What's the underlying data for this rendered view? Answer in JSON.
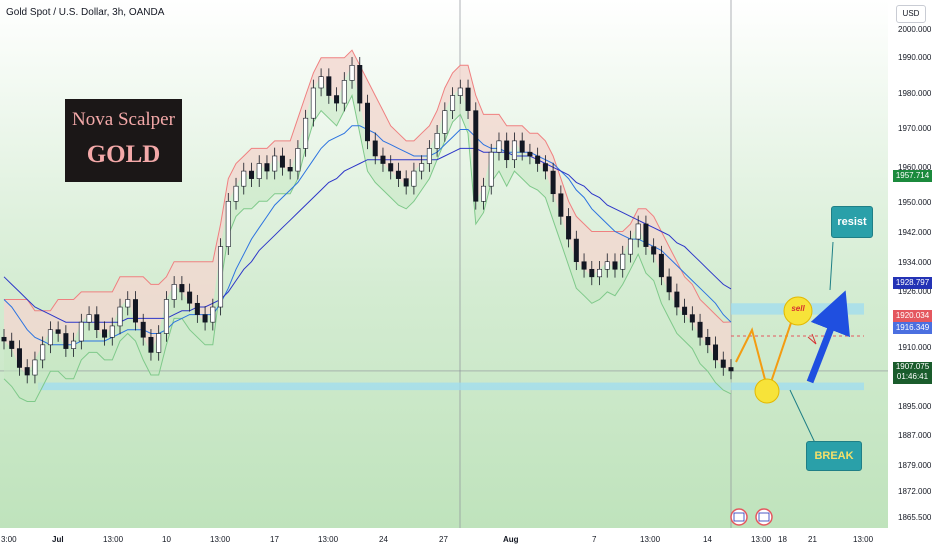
{
  "header": {
    "title": "Gold Spot / U.S. Dollar, 3h, OANDA",
    "currency": "USD"
  },
  "logo": {
    "line1": "Nova Scalper",
    "line2": "GOLD"
  },
  "annotations": {
    "resist": "resist",
    "break": "BREAK",
    "sell": "sell"
  },
  "price_tags": [
    {
      "value": "1957.714",
      "color": "#1b8a3c"
    },
    {
      "value": "1928.797",
      "color": "#2433b5"
    },
    {
      "value": "1920.034",
      "color": "#e4575f"
    },
    {
      "value": "1916.349",
      "color": "#4b6fe0"
    },
    {
      "value": "1907.075",
      "countdown": "01:46:41",
      "color": "#1a5c2c"
    }
  ],
  "colors": {
    "candle": "#131722",
    "cloud_fill": "#f2d7cf",
    "bull_band": "#7fc98a",
    "bear_band": "#ef8080",
    "fast_ma": "#2c73e0",
    "slow_ma": "#2d36c8",
    "zone": "#9fdcf0",
    "projection": "#f39c12",
    "arrow": "#1f4fe0"
  },
  "chart_data": {
    "type": "line",
    "title": "Gold Spot / U.S. Dollar, 3h, OANDA",
    "ylim": [
      1865.5,
      2000
    ],
    "y_ticks": [
      "2000.000",
      "1990.000",
      "1980.000",
      "1970.000",
      "1960.000",
      "1950.000",
      "1942.000",
      "1934.000",
      "1926.000",
      "1910.000",
      "1895.000",
      "1887.000",
      "1879.000",
      "1872.000",
      "1865.500"
    ],
    "x_ticks": [
      "3:00",
      "Jul",
      "13:00",
      "10",
      "13:00",
      "17",
      "13:00",
      "24",
      "27",
      "Aug",
      "7",
      "13:00",
      "14",
      "13:00",
      "18",
      "21",
      "13:00"
    ],
    "grid": false,
    "series": [
      {
        "name": "close",
        "values": [
          1915,
          1913,
          1908,
          1906,
          1910,
          1914,
          1918,
          1917,
          1913,
          1915,
          1920,
          1922,
          1918,
          1916,
          1919,
          1924,
          1926,
          1920,
          1916,
          1912,
          1917,
          1926,
          1930,
          1928,
          1925,
          1922,
          1920,
          1924,
          1940,
          1952,
          1956,
          1960,
          1958,
          1962,
          1960,
          1964,
          1961,
          1960,
          1966,
          1974,
          1982,
          1985,
          1980,
          1978,
          1984,
          1988,
          1978,
          1968,
          1964,
          1962,
          1960,
          1958,
          1956,
          1960,
          1962,
          1966,
          1970,
          1976,
          1980,
          1982,
          1976,
          1952,
          1956,
          1965,
          1968,
          1963,
          1968,
          1965,
          1964,
          1962,
          1960,
          1954,
          1948,
          1942,
          1936,
          1934,
          1932,
          1934,
          1936,
          1934,
          1938,
          1942,
          1946,
          1940,
          1938,
          1932,
          1928,
          1924,
          1922,
          1920,
          1916,
          1914,
          1910,
          1908,
          1907.075
        ]
      },
      {
        "name": "upper band",
        "values": [
          1926,
          1926,
          1926,
          1926,
          1923,
          1923,
          1923,
          1926,
          1926,
          1926,
          1928,
          1928,
          1928,
          1928,
          1928,
          1932,
          1932,
          1932,
          1932,
          1930,
          1930,
          1932,
          1936,
          1936,
          1936,
          1936,
          1936,
          1936,
          1946,
          1958,
          1962,
          1964,
          1966,
          1966,
          1966,
          1968,
          1968,
          1968,
          1974,
          1980,
          1986,
          1990,
          1990,
          1990,
          1990,
          1992,
          1988,
          1984,
          1980,
          1976,
          1972,
          1970,
          1968,
          1968,
          1970,
          1972,
          1976,
          1982,
          1986,
          1988,
          1988,
          1980,
          1975,
          1975,
          1975,
          1972,
          1972,
          1972,
          1970,
          1970,
          1968,
          1964,
          1958,
          1952,
          1948,
          1946,
          1944,
          1944,
          1944,
          1944,
          1944,
          1946,
          1950,
          1950,
          1948,
          1944,
          1940,
          1936,
          1932,
          1930,
          1926,
          1924,
          1922,
          1920,
          1920.034
        ]
      },
      {
        "name": "lower band",
        "values": [
          1905,
          1903,
          1900,
          1899,
          1899,
          1903,
          1907,
          1907,
          1905,
          1905,
          1910,
          1912,
          1912,
          1910,
          1910,
          1915,
          1917,
          1915,
          1910,
          1906,
          1906,
          1914,
          1921,
          1921,
          1918,
          1916,
          1914,
          1914,
          1930,
          1943,
          1948,
          1950,
          1950,
          1952,
          1952,
          1954,
          1954,
          1954,
          1958,
          1966,
          1973,
          1976,
          1974,
          1972,
          1976,
          1980,
          1970,
          1960,
          1957,
          1955,
          1953,
          1951,
          1950,
          1952,
          1955,
          1958,
          1963,
          1968,
          1973,
          1975,
          1970,
          1946,
          1949,
          1957,
          1960,
          1956,
          1960,
          1958,
          1956,
          1955,
          1953,
          1947,
          1941,
          1935,
          1929,
          1927,
          1925,
          1926,
          1928,
          1927,
          1930,
          1934,
          1938,
          1933,
          1931,
          1925,
          1921,
          1917,
          1915,
          1913,
          1909,
          1907,
          1904,
          1902,
          1901
        ]
      },
      {
        "name": "fast ma",
        "values": [
          1926,
          1924,
          1921,
          1918,
          1916,
          1915,
          1914,
          1914,
          1914,
          1914,
          1915,
          1915,
          1915,
          1915,
          1916,
          1917,
          1918,
          1918,
          1918,
          1917,
          1917,
          1918,
          1920,
          1921,
          1922,
          1922,
          1922,
          1922,
          1925,
          1929,
          1934,
          1938,
          1942,
          1945,
          1948,
          1951,
          1953,
          1955,
          1957,
          1960,
          1963,
          1966,
          1968,
          1969,
          1970,
          1972,
          1972,
          1971,
          1970,
          1968,
          1967,
          1966,
          1965,
          1964,
          1964,
          1964,
          1965,
          1967,
          1969,
          1971,
          1971,
          1969,
          1967,
          1966,
          1966,
          1965,
          1965,
          1965,
          1965,
          1964,
          1963,
          1962,
          1960,
          1958,
          1955,
          1953,
          1950,
          1948,
          1946,
          1944,
          1943,
          1942,
          1942,
          1941,
          1940,
          1939,
          1937,
          1935,
          1933,
          1931,
          1929,
          1927,
          1925,
          1922,
          1920
        ]
      },
      {
        "name": "slow ma",
        "values": [
          1932,
          1930,
          1928,
          1926,
          1924,
          1923,
          1922,
          1921,
          1920,
          1920,
          1920,
          1920,
          1920,
          1920,
          1920,
          1920,
          1921,
          1921,
          1921,
          1921,
          1921,
          1921,
          1922,
          1923,
          1923,
          1924,
          1924,
          1925,
          1926,
          1928,
          1931,
          1934,
          1936,
          1939,
          1941,
          1943,
          1945,
          1947,
          1949,
          1951,
          1953,
          1955,
          1957,
          1958,
          1960,
          1961,
          1962,
          1963,
          1963,
          1963,
          1963,
          1963,
          1963,
          1963,
          1963,
          1963,
          1963,
          1964,
          1965,
          1966,
          1966,
          1966,
          1965,
          1965,
          1965,
          1965,
          1964,
          1964,
          1964,
          1963,
          1962,
          1961,
          1960,
          1959,
          1957,
          1956,
          1954,
          1953,
          1951,
          1950,
          1949,
          1948,
          1947,
          1946,
          1945,
          1944,
          1943,
          1941,
          1940,
          1938,
          1936,
          1934,
          1932,
          1930,
          1928.797
        ]
      }
    ],
    "levels": {
      "support_zone": [
        1902,
        1904
      ],
      "resistance_zone": [
        1922,
        1925
      ],
      "sell_level": 1916.349,
      "current_price": 1907.075
    }
  }
}
